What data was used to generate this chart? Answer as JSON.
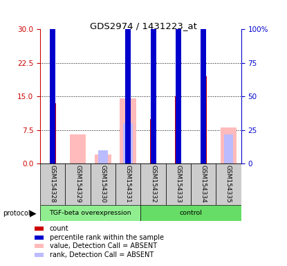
{
  "title": "GDS2974 / 1431223_at",
  "samples": [
    "GSM154328",
    "GSM154329",
    "GSM154330",
    "GSM154331",
    "GSM154332",
    "GSM154333",
    "GSM154334",
    "GSM154335"
  ],
  "count_values": [
    13.5,
    0,
    0,
    0,
    10.0,
    15.0,
    19.5,
    0
  ],
  "rank_values": [
    30.0,
    0,
    0,
    30.0,
    30.0,
    33.0,
    40.0,
    0
  ],
  "absent_value": [
    0,
    6.5,
    2.0,
    14.5,
    0,
    0,
    0,
    8.0
  ],
  "absent_rank": [
    0,
    0,
    3.0,
    9.0,
    0,
    0,
    0,
    6.5
  ],
  "left_ylim": [
    0,
    30
  ],
  "right_ylim": [
    0,
    100
  ],
  "left_yticks": [
    0,
    7.5,
    15,
    22.5,
    30
  ],
  "right_ytick_vals": [
    0,
    25,
    50,
    75,
    100
  ],
  "right_ytick_labels": [
    "0",
    "25",
    "50",
    "75",
    "100%"
  ],
  "left_ylabel_color": "#cc0000",
  "right_ylabel_color": "#0000cc",
  "color_count": "#cc0000",
  "color_rank": "#0000cc",
  "color_absent_value": "#ffbbbb",
  "color_absent_rank": "#bbbbff",
  "group_label_1": "TGF-beta overexpression",
  "group_label_2": "control",
  "group_color_1": "#90ee90",
  "group_color_2": "#66dd66",
  "legend": [
    {
      "label": "count",
      "color": "#cc0000"
    },
    {
      "label": "percentile rank within the sample",
      "color": "#0000cc"
    },
    {
      "label": "value, Detection Call = ABSENT",
      "color": "#ffbbbb"
    },
    {
      "label": "rank, Detection Call = ABSENT",
      "color": "#bbbbff"
    }
  ],
  "background_label": "#cccccc",
  "wide_bar_width": 0.65,
  "narrow_bar_width": 0.25,
  "rank_bar_width": 0.22
}
